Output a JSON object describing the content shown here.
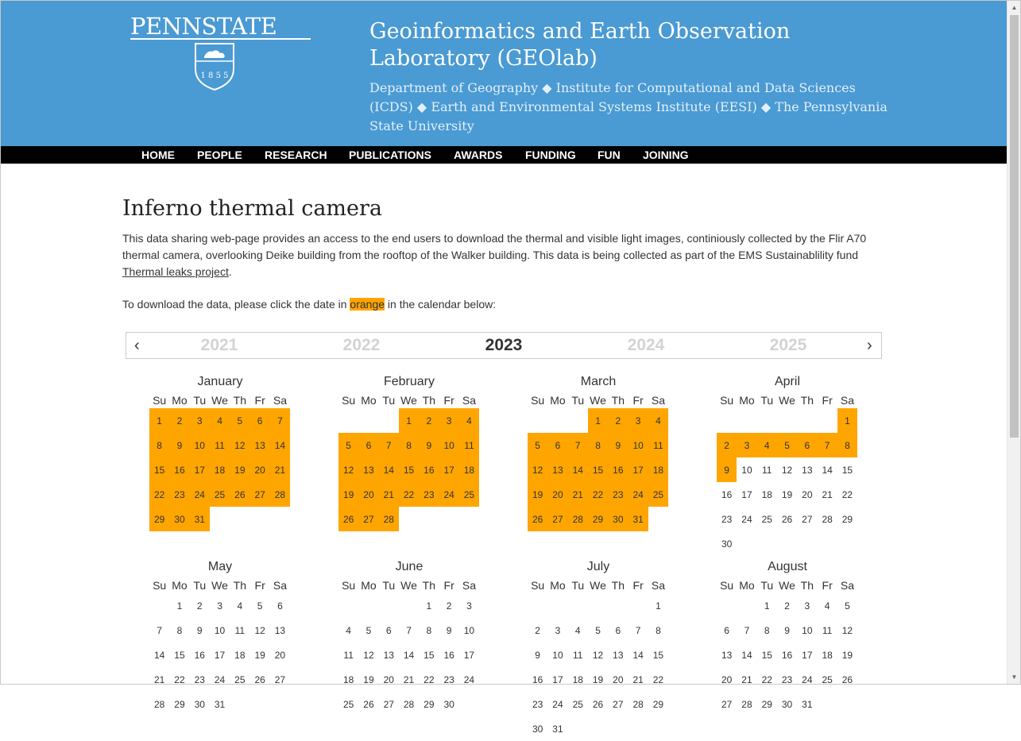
{
  "header": {
    "logo_text": "PENNSTATE",
    "logo_year": "1 8 5 5",
    "lab_title": "Geoinformatics and Earth Observation Laboratory (GEOlab)",
    "departments": "Department of Geography ◆ Institute for Computational and Data Sciences (ICDS) ◆ Earth and Environmental Systems Institute (EESI) ◆ The Pennsylvania State University"
  },
  "nav": [
    "HOME",
    "PEOPLE",
    "RESEARCH",
    "PUBLICATIONS",
    "AWARDS",
    "FUNDING",
    "FUN",
    "JOINING"
  ],
  "page": {
    "title": "Inferno thermal camera",
    "intro": "This data sharing web-page provides an access to the end users to download the thermal and visible light images, continiously collected by the Flir A70 thermal camera, overlooking Deike building from the rooftop of the Walker building. This data is being collected as part of the EMS Sustainablility fund ",
    "intro_link": "Thermal leaks project",
    "intro_end": ".",
    "download_pre": "To download the data, please click the date in ",
    "download_hl": "orange",
    "download_post": " in the calendar below:"
  },
  "years": {
    "prev": "‹",
    "next": "›",
    "list": [
      "2021",
      "2022",
      "2023",
      "2024",
      "2025"
    ],
    "active": "2023"
  },
  "weekdays": [
    "Su",
    "Mo",
    "Tu",
    "We",
    "Th",
    "Fr",
    "Sa"
  ],
  "months": [
    {
      "name": "January",
      "start": 0,
      "days": 31,
      "available": [
        1,
        31
      ]
    },
    {
      "name": "February",
      "start": 3,
      "days": 28,
      "available": [
        1,
        28
      ]
    },
    {
      "name": "March",
      "start": 3,
      "days": 31,
      "available": [
        1,
        31
      ]
    },
    {
      "name": "April",
      "start": 6,
      "days": 30,
      "available": [
        1,
        9
      ]
    },
    {
      "name": "May",
      "start": 1,
      "days": 31,
      "available": []
    },
    {
      "name": "June",
      "start": 4,
      "days": 30,
      "available": []
    },
    {
      "name": "July",
      "start": 6,
      "days": 31,
      "available": []
    },
    {
      "name": "August",
      "start": 2,
      "days": 31,
      "available": []
    }
  ],
  "colors": {
    "header": "#4a9ad3",
    "nav": "#000000",
    "available": "#ffa500"
  }
}
